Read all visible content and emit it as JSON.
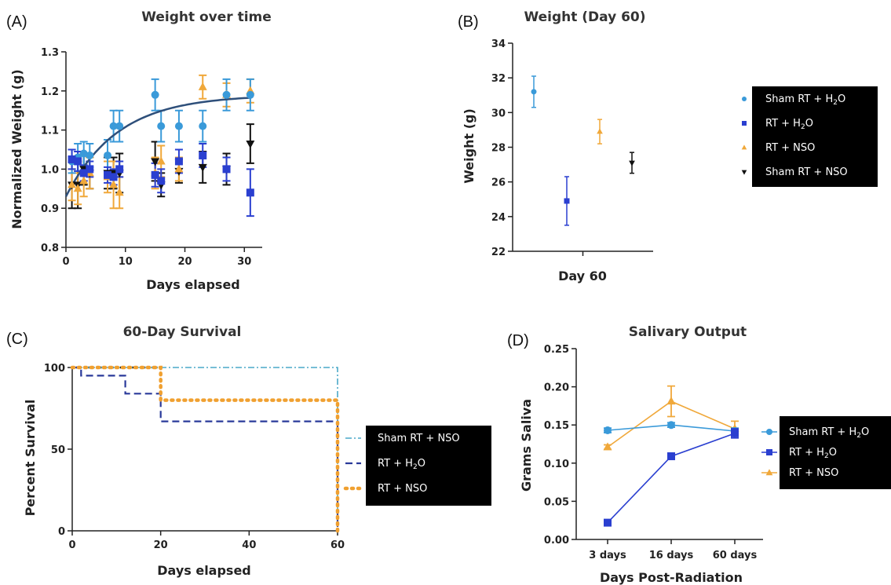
{
  "colors": {
    "sham_h2o": "#3a9ad9",
    "rt_h2o": "#2a3fd0",
    "rt_nso": "#f0a83a",
    "sham_nso": "#111111",
    "fit": "#2e4f7a",
    "surv_sham_nso": "#4aa8c8",
    "surv_rt_h2o": "#2a3a9a",
    "surv_rt_nso": "#f0a030"
  },
  "chart_data": [
    {
      "id": "A",
      "panel_letter": "(A)",
      "type": "scatter",
      "title": "Weight over time",
      "xlabel": "Days elapsed",
      "ylabel": "Normalized Weight (g)",
      "xlim": [
        0,
        33
      ],
      "ylim": [
        0.8,
        1.3
      ],
      "xticks": [
        0,
        10,
        20,
        30
      ],
      "yticks": [
        0.8,
        0.9,
        1.0,
        1.1,
        1.2,
        1.3
      ],
      "ytick_labels": [
        "0.8",
        "0.9",
        "1.0",
        "1.1",
        "1.2",
        "1.3"
      ],
      "series": [
        {
          "key": "sham_h2o",
          "marker": "circle",
          "x": [
            1,
            2,
            3,
            4,
            7,
            8,
            9,
            15,
            16,
            19,
            23,
            27,
            31
          ],
          "y": [
            1.02,
            1.03,
            1.04,
            1.035,
            1.035,
            1.11,
            1.11,
            1.19,
            1.11,
            1.11,
            1.11,
            1.19,
            1.19
          ],
          "err": [
            0.03,
            0.035,
            0.03,
            0.03,
            0.04,
            0.04,
            0.04,
            0.04,
            0.04,
            0.04,
            0.04,
            0.04,
            0.04
          ]
        },
        {
          "key": "rt_h2o",
          "marker": "square",
          "x": [
            1,
            2,
            3,
            4,
            7,
            8,
            9,
            15,
            16,
            19,
            23,
            27,
            31
          ],
          "y": [
            1.025,
            1.02,
            0.99,
            1.0,
            0.985,
            0.98,
            1.0,
            0.985,
            0.97,
            1.02,
            1.035,
            1.0,
            0.94
          ],
          "err": [
            0.025,
            0.025,
            0.02,
            0.02,
            0.02,
            0.02,
            0.02,
            0.03,
            0.03,
            0.03,
            0.03,
            0.03,
            0.06
          ]
        },
        {
          "key": "rt_nso",
          "marker": "triangle-up",
          "x": [
            1,
            2,
            3,
            4,
            7,
            8,
            9,
            15,
            16,
            19,
            23,
            27,
            31
          ],
          "y": [
            0.96,
            0.95,
            0.97,
            0.99,
            0.98,
            0.96,
            0.94,
            0.99,
            1.02,
            1.0,
            1.21,
            1.19,
            1.2
          ],
          "err": [
            0.04,
            0.04,
            0.04,
            0.04,
            0.04,
            0.06,
            0.04,
            0.04,
            0.04,
            0.03,
            0.03,
            0.03,
            0.03
          ]
        },
        {
          "key": "sham_nso",
          "marker": "triangle-down",
          "x": [
            1,
            2,
            3,
            4,
            7,
            8,
            9,
            15,
            16,
            19,
            23,
            27,
            31
          ],
          "y": [
            0.96,
            0.96,
            1.0,
            0.99,
            0.99,
            0.99,
            0.99,
            1.02,
            0.96,
            0.995,
            1.005,
            1.0,
            1.065
          ],
          "err": [
            0.06,
            0.06,
            0.04,
            0.04,
            0.04,
            0.04,
            0.05,
            0.05,
            0.03,
            0.03,
            0.04,
            0.04,
            0.05
          ]
        }
      ],
      "fit_curve": {
        "key": "fit",
        "plateau": 1.19,
        "start": 0.93,
        "k": 0.115
      }
    },
    {
      "id": "B",
      "panel_letter": "(B)",
      "type": "scatter",
      "title": "Weight (Day 60)",
      "xlabel": "Day 60",
      "ylabel": "Weight (g)",
      "ylim": [
        22,
        34
      ],
      "yticks": [
        22,
        24,
        26,
        28,
        30,
        32,
        34
      ],
      "ytick_labels": [
        "22",
        "24",
        "26",
        "28",
        "30",
        "32",
        "34"
      ],
      "categories": [
        "Day 60"
      ],
      "series": [
        {
          "key": "sham_h2o",
          "marker": "circle",
          "slot": 0,
          "value": 31.2,
          "err": 0.9
        },
        {
          "key": "rt_h2o",
          "marker": "square",
          "slot": 1,
          "value": 24.9,
          "err": 1.4
        },
        {
          "key": "rt_nso",
          "marker": "triangle-up",
          "slot": 2,
          "value": 28.9,
          "err": 0.7
        },
        {
          "key": "sham_nso",
          "marker": "triangle-down",
          "slot": 3,
          "value": 27.1,
          "err": 0.6
        }
      ],
      "legend": {
        "position": "right",
        "entries": [
          {
            "key": "sham_h2o",
            "marker": "circle",
            "prefix": "Sham RT + H",
            "sub": "2",
            "suffix": "O"
          },
          {
            "key": "rt_h2o",
            "marker": "square",
            "prefix": "RT + H",
            "sub": "2",
            "suffix": "O"
          },
          {
            "key": "rt_nso",
            "marker": "triangle-up",
            "prefix": "RT + NSO",
            "sub": "",
            "suffix": ""
          },
          {
            "key": "sham_nso",
            "marker": "triangle-down",
            "prefix": "Sham RT + NSO",
            "sub": "",
            "suffix": ""
          }
        ]
      }
    },
    {
      "id": "C",
      "panel_letter": "(C)",
      "type": "line",
      "title": "60-Day Survival",
      "xlabel": "Days elapsed",
      "ylabel": "Percent Survival",
      "xlim": [
        0,
        60
      ],
      "ylim": [
        0,
        100
      ],
      "xticks": [
        0,
        20,
        40,
        60
      ],
      "yticks": [
        0,
        50,
        100
      ],
      "ytick_labels": [
        "0",
        "50",
        "100"
      ],
      "series": [
        {
          "key": "surv_sham_nso",
          "style": "dashdot",
          "steps": [
            [
              0,
              100
            ],
            [
              60,
              100
            ],
            [
              60,
              0
            ]
          ]
        },
        {
          "key": "surv_rt_h2o",
          "style": "dashed",
          "steps": [
            [
              0,
              100
            ],
            [
              2,
              100
            ],
            [
              2,
              95
            ],
            [
              12,
              95
            ],
            [
              12,
              84
            ],
            [
              20,
              84
            ],
            [
              20,
              67
            ],
            [
              60,
              67
            ],
            [
              60,
              0
            ]
          ]
        },
        {
          "key": "surv_rt_nso",
          "style": "dotted",
          "steps": [
            [
              0,
              100
            ],
            [
              20,
              100
            ],
            [
              20,
              80
            ],
            [
              60,
              80
            ],
            [
              60,
              0
            ]
          ]
        }
      ],
      "legend": {
        "position": "right",
        "entries": [
          {
            "key": "surv_sham_nso",
            "prefix": "Sham RT + NSO",
            "sub": "",
            "suffix": ""
          },
          {
            "key": "surv_rt_h2o",
            "prefix": "RT + H",
            "sub": "2",
            "suffix": "O"
          },
          {
            "key": "surv_rt_nso",
            "prefix": "RT + NSO",
            "sub": "",
            "suffix": ""
          }
        ]
      }
    },
    {
      "id": "D",
      "panel_letter": "(D)",
      "type": "line",
      "title": "Salivary Output",
      "xlabel": "Days Post-Radiation",
      "ylabel": "Grams Saliva",
      "categories": [
        "3 days",
        "16 days",
        "60 days"
      ],
      "ylim": [
        0,
        0.25
      ],
      "yticks": [
        0,
        0.05,
        0.1,
        0.15,
        0.2,
        0.25
      ],
      "ytick_labels": [
        "0.00",
        "0.05",
        "0.10",
        "0.15",
        "0.20",
        "0.25"
      ],
      "series": [
        {
          "key": "sham_h2o",
          "marker": "circle",
          "values": [
            0.143,
            0.15,
            0.142
          ],
          "err": [
            0.003,
            0.003,
            0.004
          ]
        },
        {
          "key": "rt_h2o",
          "marker": "square",
          "values": [
            0.022,
            0.109,
            0.139
          ],
          "err": [
            0.002,
            0.004,
            0.006
          ]
        },
        {
          "key": "rt_nso",
          "marker": "triangle-up",
          "values": [
            0.121,
            0.181,
            0.145
          ],
          "err": [
            0.003,
            0.02,
            0.01
          ]
        }
      ],
      "legend": {
        "position": "right",
        "entries": [
          {
            "key": "sham_h2o",
            "marker": "circle",
            "prefix": "Sham RT + H",
            "sub": "2",
            "suffix": "O"
          },
          {
            "key": "rt_h2o",
            "marker": "square",
            "prefix": "RT + H",
            "sub": "2",
            "suffix": "O"
          },
          {
            "key": "rt_nso",
            "marker": "triangle-up",
            "prefix": "RT + NSO",
            "sub": "",
            "suffix": ""
          }
        ]
      }
    }
  ]
}
